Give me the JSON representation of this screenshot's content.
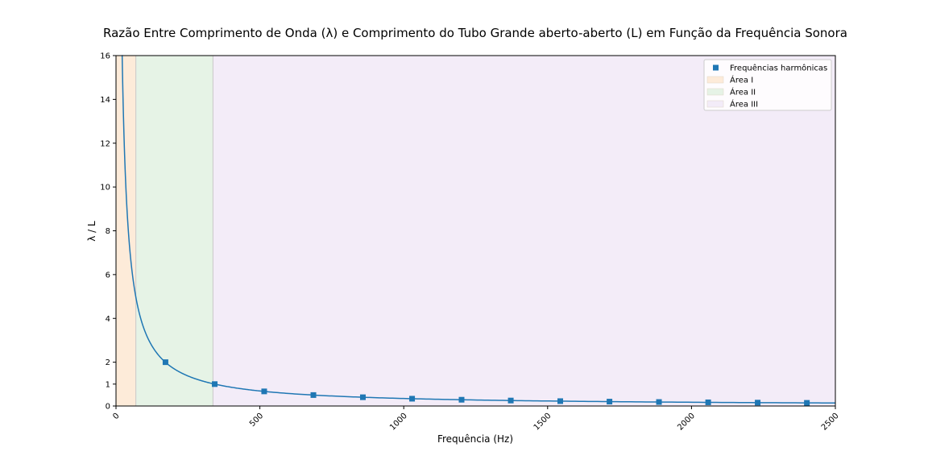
{
  "chart_data": {
    "type": "line",
    "title": "Razão Entre Comprimento de Onda (λ) e Comprimento do Tubo Grande aberto-aberto (L) em Função da Frequência Sonora",
    "xlabel": "Frequência (Hz)",
    "ylabel": "λ / L",
    "xlim": [
      0,
      2500
    ],
    "ylim": [
      0,
      16
    ],
    "x_ticks": [
      0,
      500,
      1000,
      1500,
      2000,
      2500
    ],
    "y_ticks": [
      0,
      1,
      2,
      4,
      6,
      8,
      10,
      12,
      14,
      16
    ],
    "grid": false,
    "legend_position": "top-right",
    "curve": {
      "formula": "y = 343 / x",
      "x_start": 21,
      "x_end": 2500,
      "color": "#1f77b4"
    },
    "regions": [
      {
        "name": "Área I",
        "x_range": [
          0,
          69
        ],
        "color": "#fdebd9"
      },
      {
        "name": "Área II",
        "x_range": [
          69,
          337
        ],
        "color": "#e6f3e6"
      },
      {
        "name": "Área III",
        "x_range": [
          337,
          2500
        ],
        "color": "#f3ecf8"
      }
    ],
    "series": [
      {
        "name": "Frequências harmônicas",
        "marker": "square",
        "color": "#1f77b4",
        "x": [
          172,
          343,
          515,
          686,
          858,
          1029,
          1201,
          1372,
          1544,
          1715,
          1887,
          2058,
          2230,
          2401
        ],
        "y": [
          2.0,
          1.0,
          0.667,
          0.5,
          0.4,
          0.333,
          0.286,
          0.25,
          0.222,
          0.2,
          0.182,
          0.167,
          0.154,
          0.143
        ]
      }
    ]
  }
}
